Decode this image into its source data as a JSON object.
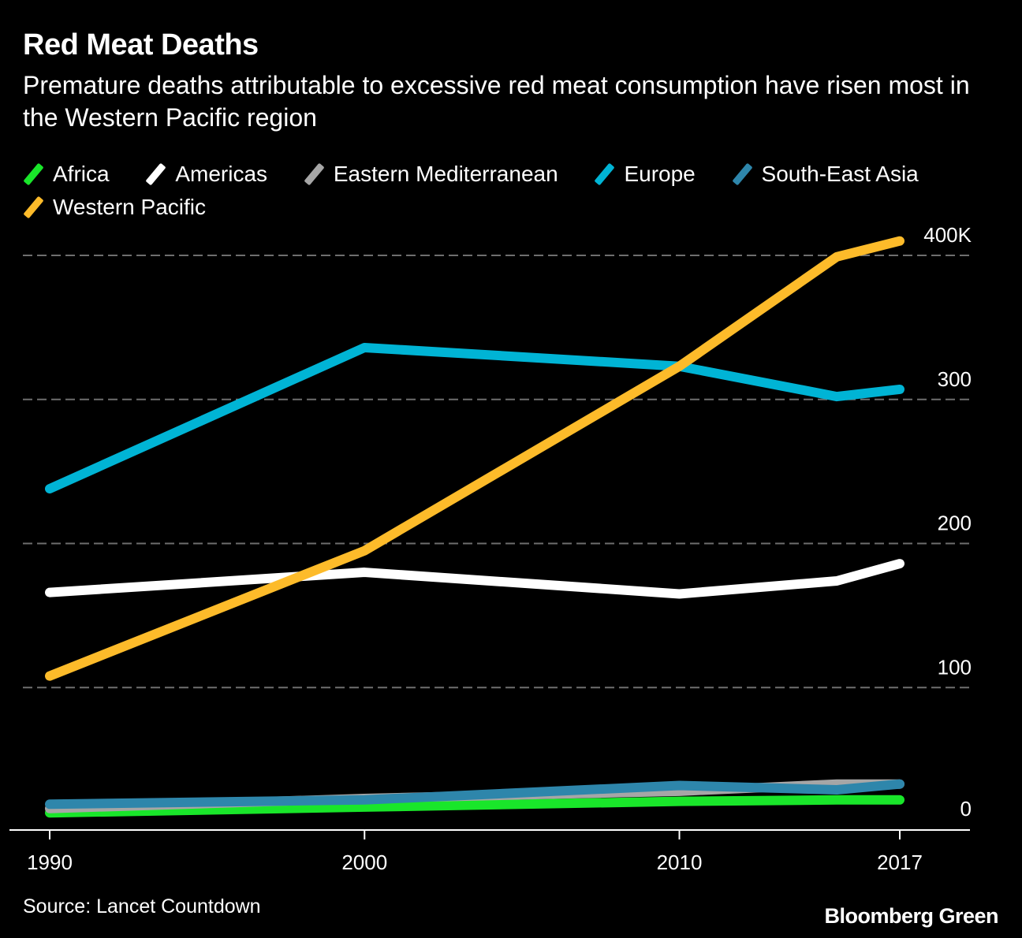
{
  "chart_data": {
    "type": "line",
    "title": "Red Meat Deaths",
    "subtitle": "Premature deaths attributable to excessive red meat consumption have risen most in the Western Pacific region",
    "xlabel": "",
    "ylabel": "",
    "x": [
      1990,
      2000,
      2010,
      2015,
      2017
    ],
    "x_ticks": [
      1990,
      2000,
      2010,
      2017
    ],
    "x_tick_labels": [
      "1990",
      "2000",
      "2010",
      "2017"
    ],
    "xlim": [
      1990,
      2017
    ],
    "ylim": [
      0,
      400
    ],
    "y_ticks": [
      0,
      100,
      200,
      300,
      400
    ],
    "y_tick_labels": [
      "0",
      "100",
      "200",
      "300",
      "400K"
    ],
    "y_units": "thousands of deaths",
    "grid": true,
    "legend_position": "top-left",
    "series": [
      {
        "name": "Africa",
        "color": "#19e62a",
        "values": [
          13,
          17,
          21,
          22,
          22
        ]
      },
      {
        "name": "Americas",
        "color": "#ffffff",
        "values": [
          166,
          180,
          165,
          174,
          186
        ]
      },
      {
        "name": "Eastern Mediterranean",
        "color": "#a6a6a6",
        "values": [
          16,
          23,
          28,
          33,
          33
        ]
      },
      {
        "name": "Europe",
        "color": "#00b4d5",
        "values": [
          238,
          336,
          323,
          302,
          307
        ]
      },
      {
        "name": "South-East Asia",
        "color": "#2e86ab",
        "values": [
          19,
          22,
          32,
          29,
          33
        ]
      },
      {
        "name": "Western Pacific",
        "color": "#fdbb2a",
        "values": [
          108,
          195,
          323,
          399,
          410
        ]
      }
    ],
    "draw_order": [
      "Africa",
      "Eastern Mediterranean",
      "South-East Asia",
      "Americas",
      "Europe",
      "Western Pacific"
    ]
  },
  "footer": {
    "source": "Source: Lancet Countdown",
    "brand": "Bloomberg Green"
  }
}
